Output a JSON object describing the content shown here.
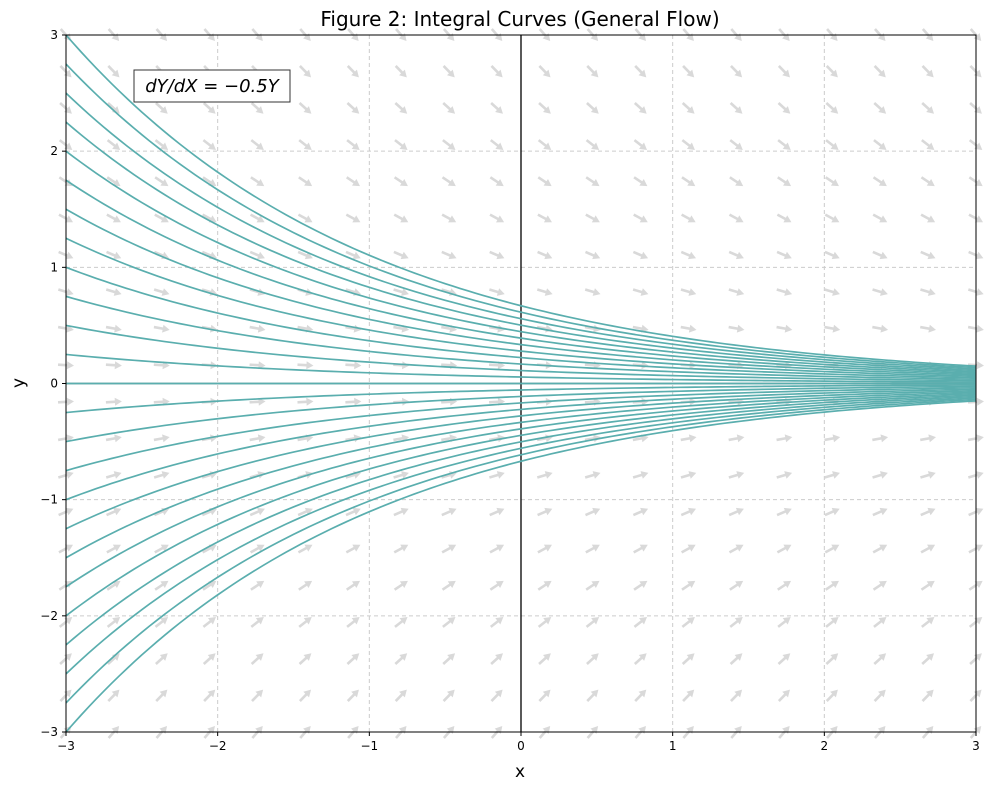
{
  "chart_data": {
    "type": "line",
    "title": "Figure 2: Integral Curves (General Flow)",
    "xlabel": "x",
    "ylabel": "y",
    "xlim": [
      -3,
      3
    ],
    "ylim": [
      -3,
      3
    ],
    "xticks": [
      -3,
      -2,
      -1,
      0,
      1,
      2,
      3
    ],
    "yticks": [
      -3,
      -2,
      -1,
      0,
      1,
      2,
      3
    ],
    "xtick_labels": [
      "−3",
      "−2",
      "−1",
      "0",
      "1",
      "2",
      "3"
    ],
    "ytick_labels": [
      "−3",
      "−2",
      "−1",
      "0",
      "1",
      "2",
      "3"
    ],
    "grid": true,
    "grid_style": "dashed",
    "annotation": "dY/dX = −0.5Y",
    "annotation_position": "top-left",
    "equation_rate": -0.5,
    "curve_color": "#5aaeae",
    "field_color": "#d9d9d9",
    "axis_line_color": "#000000",
    "series": [
      {
        "y_at_x_minus_3": 3.0
      },
      {
        "y_at_x_minus_3": 2.75
      },
      {
        "y_at_x_minus_3": 2.5
      },
      {
        "y_at_x_minus_3": 2.25
      },
      {
        "y_at_x_minus_3": 2.0
      },
      {
        "y_at_x_minus_3": 1.75
      },
      {
        "y_at_x_minus_3": 1.5
      },
      {
        "y_at_x_minus_3": 1.25
      },
      {
        "y_at_x_minus_3": 1.0
      },
      {
        "y_at_x_minus_3": 0.75
      },
      {
        "y_at_x_minus_3": 0.5
      },
      {
        "y_at_x_minus_3": 0.25
      },
      {
        "y_at_x_minus_3": 0.0
      },
      {
        "y_at_x_minus_3": -0.25
      },
      {
        "y_at_x_minus_3": -0.5
      },
      {
        "y_at_x_minus_3": -0.75
      },
      {
        "y_at_x_minus_3": -1.0
      },
      {
        "y_at_x_minus_3": -1.25
      },
      {
        "y_at_x_minus_3": -1.5
      },
      {
        "y_at_x_minus_3": -1.75
      },
      {
        "y_at_x_minus_3": -2.0
      },
      {
        "y_at_x_minus_3": -2.25
      },
      {
        "y_at_x_minus_3": -2.5
      },
      {
        "y_at_x_minus_3": -2.75
      },
      {
        "y_at_x_minus_3": -3.0
      }
    ],
    "vector_field": {
      "x_range": [
        -3,
        3
      ],
      "y_range": [
        -3,
        3
      ],
      "count": 20
    }
  }
}
